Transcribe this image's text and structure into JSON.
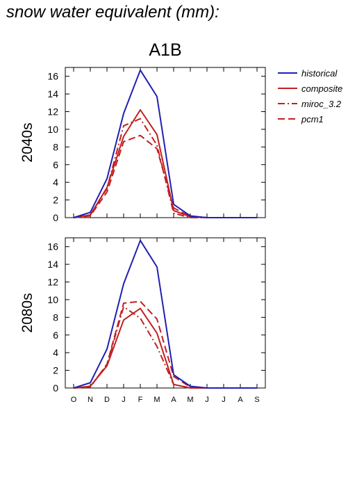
{
  "title": "snow water equivalent (mm):",
  "chart_data": {
    "type": "line",
    "scenario": "A1B",
    "x": [
      "O",
      "N",
      "D",
      "J",
      "F",
      "M",
      "A",
      "M",
      "J",
      "J",
      "A",
      "S"
    ],
    "ylim": [
      0,
      17
    ],
    "yticks": [
      0,
      2,
      4,
      6,
      8,
      10,
      12,
      14,
      16
    ],
    "legend": [
      {
        "name": "historical",
        "color": "#1f1fb4",
        "dash": "solid"
      },
      {
        "name": "composite",
        "color": "#c02020",
        "dash": "solid"
      },
      {
        "name": "miroc_3.2",
        "color": "#c02020",
        "dash": "dashdot"
      },
      {
        "name": "pcm1",
        "color": "#c02020",
        "dash": "dashed"
      }
    ],
    "panels": [
      {
        "label": "2040s",
        "series": [
          {
            "name": "historical",
            "values": [
              0,
              0.6,
              4.4,
              11.8,
              16.7,
              13.7,
              1.5,
              0.2,
              0,
              0,
              0,
              0
            ]
          },
          {
            "name": "composite",
            "values": [
              0,
              0.3,
              3.4,
              9.2,
              12.2,
              9.4,
              0.8,
              0.1,
              0,
              0,
              0,
              0
            ]
          },
          {
            "name": "miroc_3.2",
            "values": [
              0,
              0.3,
              3.3,
              10.4,
              11.2,
              8.2,
              0.5,
              0,
              0,
              0,
              0,
              0
            ]
          },
          {
            "name": "pcm1",
            "values": [
              0,
              0.2,
              2.9,
              8.6,
              9.3,
              7.8,
              1.1,
              0.1,
              0,
              0,
              0,
              0
            ]
          }
        ]
      },
      {
        "label": "2080s",
        "series": [
          {
            "name": "historical",
            "values": [
              0,
              0.6,
              4.4,
              11.8,
              16.7,
              13.7,
              1.5,
              0.2,
              0,
              0,
              0,
              0
            ]
          },
          {
            "name": "composite",
            "values": [
              0,
              0.2,
              2.5,
              7.7,
              9.0,
              6.2,
              0.4,
              0,
              0,
              0,
              0,
              0
            ]
          },
          {
            "name": "miroc_3.2",
            "values": [
              0,
              0.2,
              2.6,
              9.2,
              7.9,
              4.7,
              0.4,
              0,
              0,
              0,
              0,
              0
            ]
          },
          {
            "name": "pcm1",
            "values": [
              0,
              0.1,
              2.7,
              9.6,
              9.8,
              7.8,
              1.3,
              0.1,
              0,
              0,
              0,
              0
            ]
          }
        ]
      }
    ]
  }
}
